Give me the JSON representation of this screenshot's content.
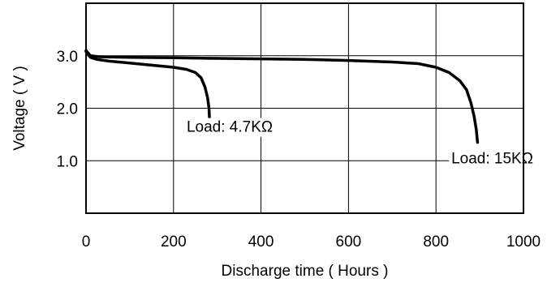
{
  "chart_data": {
    "type": "line",
    "title": "",
    "xlabel": "Discharge time ( Hours )",
    "ylabel": "Voltage ( V )",
    "xlim": [
      0,
      1000
    ],
    "ylim": [
      0,
      4.0
    ],
    "grid": true,
    "x_ticks": [
      0,
      200,
      400,
      600,
      800,
      1000
    ],
    "x_tick_labels": [
      "0",
      "200",
      "400",
      "600",
      "800",
      "1000"
    ],
    "y_ticks": [
      1.0,
      2.0,
      3.0
    ],
    "y_tick_labels": [
      "1.0",
      "2.0",
      "3.0"
    ],
    "series": [
      {
        "x": [
          0,
          10,
          25,
          50,
          100,
          150,
          200,
          230,
          250,
          263,
          272,
          278,
          281,
          282
        ],
        "y": [
          3.08,
          2.97,
          2.93,
          2.9,
          2.86,
          2.82,
          2.78,
          2.74,
          2.68,
          2.58,
          2.4,
          2.2,
          2.0,
          1.83
        ]
      },
      {
        "x": [
          0,
          10,
          30,
          100,
          200,
          300,
          400,
          500,
          600,
          700,
          760,
          800,
          830,
          855,
          870,
          880,
          887,
          892,
          895
        ],
        "y": [
          3.1,
          3.0,
          2.98,
          2.97,
          2.96,
          2.95,
          2.94,
          2.93,
          2.91,
          2.88,
          2.85,
          2.78,
          2.68,
          2.52,
          2.35,
          2.1,
          1.85,
          1.6,
          1.35
        ]
      }
    ],
    "annotations": [
      {
        "text": "Load: 4.7KΩ",
        "x": 230,
        "y": 1.55
      },
      {
        "text": "Load: 15KΩ",
        "x": 835,
        "y": 0.95
      }
    ],
    "line_color": "#000000",
    "grid_color": "#000000",
    "background": "#ffffff"
  }
}
